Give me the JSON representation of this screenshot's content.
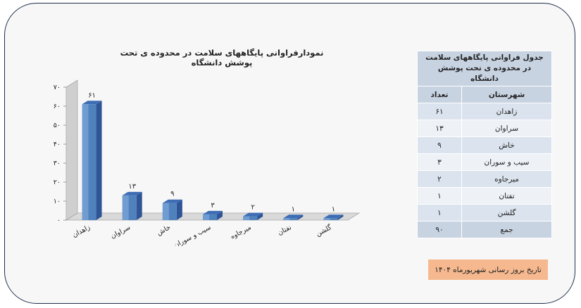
{
  "chart_data": {
    "type": "bar",
    "title": "نمودارفراوانی پایگاههای سلامت در محدوده ی تحت پوشش دانشگاه",
    "categories": [
      "زاهدان",
      "سراوان",
      "خاش",
      "سیب و سوران",
      "میرجاوه",
      "نفتان",
      "گلشن"
    ],
    "values": [
      61,
      13,
      9,
      3,
      2,
      1,
      1
    ],
    "value_labels": [
      "۶۱",
      "۱۳",
      "۹",
      "۳",
      "۲",
      "۱",
      "۱"
    ],
    "ylim": [
      0,
      70
    ],
    "yticks": [
      "۰",
      "۱۰",
      "۲۰",
      "۳۰",
      "۴۰",
      "۵۰",
      "۶۰",
      "۷۰"
    ],
    "bar_color": "#4f81bd",
    "grid": false,
    "legend": "none"
  },
  "table": {
    "title": "جدول فراوانی پایگاههای سلامت در محدوده ی تحت پوشش دانشگاه",
    "headers": {
      "city": "شهرستان",
      "count": "تعداد"
    },
    "rows": [
      {
        "city": "زاهدان",
        "count": "۶۱"
      },
      {
        "city": "سراوان",
        "count": "۱۳"
      },
      {
        "city": "خاش",
        "count": "۹"
      },
      {
        "city": "سیب و سوران",
        "count": "۳"
      },
      {
        "city": "میرجاوه",
        "count": "۲"
      },
      {
        "city": "تفتان",
        "count": "۱"
      },
      {
        "city": "گلشن",
        "count": "۱"
      }
    ],
    "total": {
      "label": "جمع",
      "count": "۹۰"
    }
  },
  "update_note": "تاریخ بروز رسانی شهریورماه ۱۴۰۴",
  "colors": {
    "frame_border": "#1f2d4a",
    "table_header": "#c8d3e2",
    "note_bg": "#f6b98f"
  }
}
